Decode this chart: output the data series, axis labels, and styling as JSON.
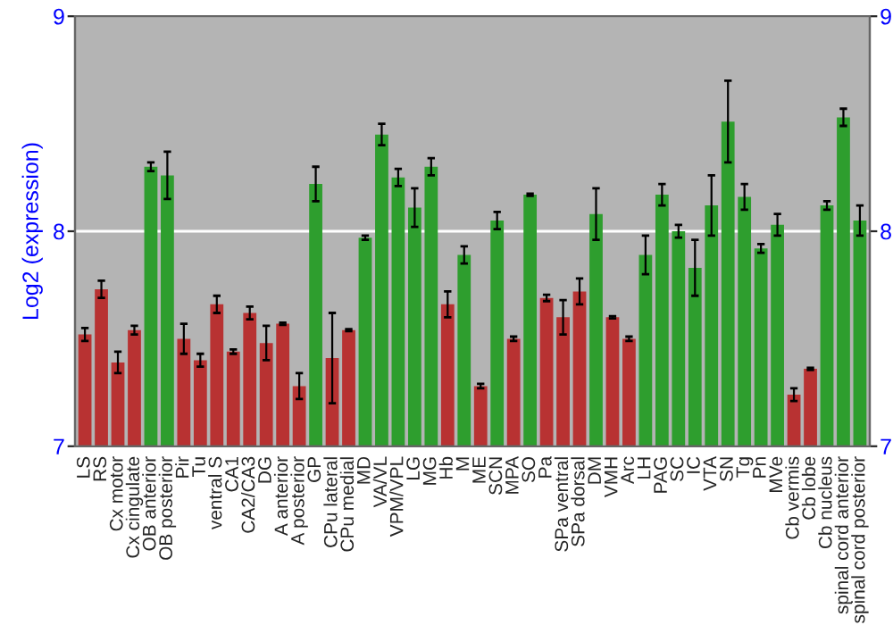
{
  "chart_data": {
    "type": "bar",
    "ylabel": "Log2 (expression)",
    "categories": [
      "LS",
      "RS",
      "Cx motor",
      "Cx cingulate",
      "OB anterior",
      "OB posterior",
      "Pir",
      "Tu",
      "ventral S",
      "CA1",
      "CA2/CA3",
      "DG",
      "A anterior",
      "A posterior",
      "GP",
      "CPu lateral",
      "CPu medial",
      "MD",
      "VA/VL",
      "VPM/VPL",
      "LG",
      "MG",
      "Hb",
      "M",
      "ME",
      "SCN",
      "MPA",
      "SO",
      "Pa",
      "SPa ventral",
      "SPa dorsal",
      "DM",
      "VMH",
      "Arc",
      "LH",
      "PAG",
      "SC",
      "IC",
      "VTA",
      "SN",
      "Tg",
      "Pn",
      "MVe",
      "Cb vermis",
      "Cb lobe",
      "Cb nucleus",
      "spinal cord anterior",
      "spinal cord posterior"
    ],
    "values": [
      7.52,
      7.73,
      7.39,
      7.54,
      8.3,
      8.26,
      7.5,
      7.4,
      7.66,
      7.44,
      7.62,
      7.48,
      7.57,
      7.28,
      8.22,
      7.41,
      7.54,
      7.97,
      8.45,
      8.25,
      8.11,
      8.3,
      7.66,
      7.89,
      7.28,
      8.05,
      7.5,
      8.17,
      7.69,
      7.6,
      7.72,
      8.08,
      7.6,
      7.5,
      7.89,
      8.17,
      8.0,
      7.83,
      8.12,
      8.51,
      8.16,
      7.92,
      8.03,
      7.24,
      7.36,
      8.12,
      8.53,
      8.05
    ],
    "errors": [
      0.03,
      0.04,
      0.05,
      0.02,
      0.02,
      0.11,
      0.07,
      0.03,
      0.04,
      0.01,
      0.03,
      0.08,
      0.005,
      0.06,
      0.08,
      0.21,
      0.005,
      0.01,
      0.05,
      0.04,
      0.09,
      0.04,
      0.06,
      0.04,
      0.01,
      0.04,
      0.01,
      0.005,
      0.015,
      0.08,
      0.06,
      0.12,
      0.005,
      0.01,
      0.09,
      0.05,
      0.03,
      0.13,
      0.14,
      0.19,
      0.06,
      0.02,
      0.05,
      0.03,
      0.005,
      0.02,
      0.04,
      0.07
    ],
    "colors": [
      "#b83232",
      "#b83232",
      "#b83232",
      "#b83232",
      "#2e9e2e",
      "#2e9e2e",
      "#b83232",
      "#b83232",
      "#b83232",
      "#b83232",
      "#b83232",
      "#b83232",
      "#b83232",
      "#b83232",
      "#2e9e2e",
      "#b83232",
      "#b83232",
      "#2e9e2e",
      "#2e9e2e",
      "#2e9e2e",
      "#2e9e2e",
      "#2e9e2e",
      "#b83232",
      "#2e9e2e",
      "#b83232",
      "#2e9e2e",
      "#b83232",
      "#2e9e2e",
      "#b83232",
      "#b83232",
      "#b83232",
      "#2e9e2e",
      "#b83232",
      "#b83232",
      "#2e9e2e",
      "#2e9e2e",
      "#2e9e2e",
      "#2e9e2e",
      "#2e9e2e",
      "#2e9e2e",
      "#2e9e2e",
      "#2e9e2e",
      "#2e9e2e",
      "#b83232",
      "#b83232",
      "#2e9e2e",
      "#2e9e2e",
      "#2e9e2e"
    ],
    "ylim": [
      7,
      9
    ],
    "yticks": [
      7,
      8,
      9
    ],
    "y2lim": [
      7,
      9
    ],
    "y2ticks": [
      7,
      8,
      9
    ],
    "grid": "y"
  }
}
